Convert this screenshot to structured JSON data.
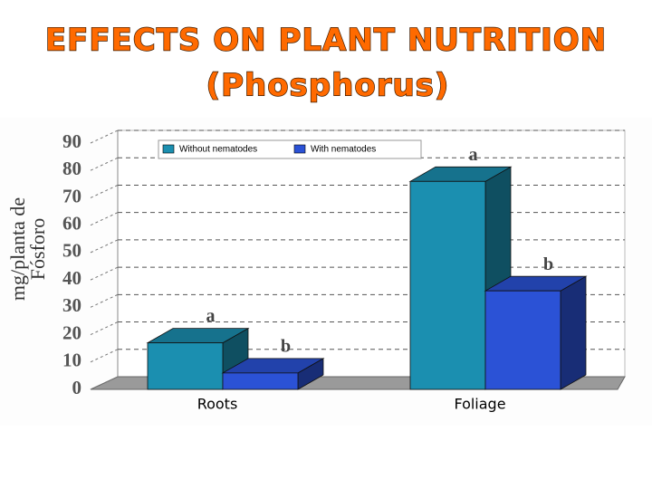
{
  "chart_data": {
    "type": "bar3d",
    "title": "EFFECTS ON PLANT NUTRITION",
    "subtitle": "(Phosphorus)",
    "ylabel_lines": [
      "mg/planta de",
      "Fósforo"
    ],
    "categories": [
      "Roots",
      "Foliage"
    ],
    "series": [
      {
        "name": "Without nematodes",
        "color": "#1b8fb0",
        "values": [
          17,
          76
        ],
        "letters": [
          "a",
          "a"
        ]
      },
      {
        "name": "With nematodes",
        "color": "#2b52d6",
        "values": [
          6,
          36
        ],
        "letters": [
          "b",
          "b"
        ]
      }
    ],
    "ylim": [
      0,
      90
    ],
    "yticks": [
      0,
      10,
      20,
      30,
      40,
      50,
      60,
      70,
      80,
      90
    ],
    "grid": true
  }
}
